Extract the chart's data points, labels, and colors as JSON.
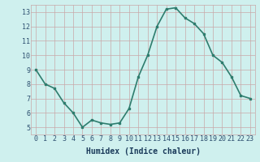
{
  "x": [
    0,
    1,
    2,
    3,
    4,
    5,
    6,
    7,
    8,
    9,
    10,
    11,
    12,
    13,
    14,
    15,
    16,
    17,
    18,
    19,
    20,
    21,
    22,
    23
  ],
  "y": [
    9.0,
    8.0,
    7.7,
    6.7,
    6.0,
    5.0,
    5.5,
    5.3,
    5.2,
    5.3,
    6.3,
    8.5,
    10.0,
    12.0,
    13.2,
    13.3,
    12.6,
    12.2,
    11.5,
    10.0,
    9.5,
    8.5,
    7.2,
    7.0
  ],
  "line_color": "#2e7d6e",
  "marker": "s",
  "marker_size": 1.8,
  "bg_color": "#cff0ee",
  "grid_color": "#c8a8a8",
  "tick_label_color": "#2e5070",
  "axis_label_color": "#1a3a5a",
  "xlabel": "Humidex (Indice chaleur)",
  "ylim": [
    4.5,
    13.5
  ],
  "xlim": [
    -0.5,
    23.5
  ],
  "yticks": [
    5,
    6,
    7,
    8,
    9,
    10,
    11,
    12,
    13
  ],
  "xticks": [
    0,
    1,
    2,
    3,
    4,
    5,
    6,
    7,
    8,
    9,
    10,
    11,
    12,
    13,
    14,
    15,
    16,
    17,
    18,
    19,
    20,
    21,
    22,
    23
  ],
  "xlabel_fontsize": 7,
  "tick_fontsize": 6,
  "line_width": 1.2
}
